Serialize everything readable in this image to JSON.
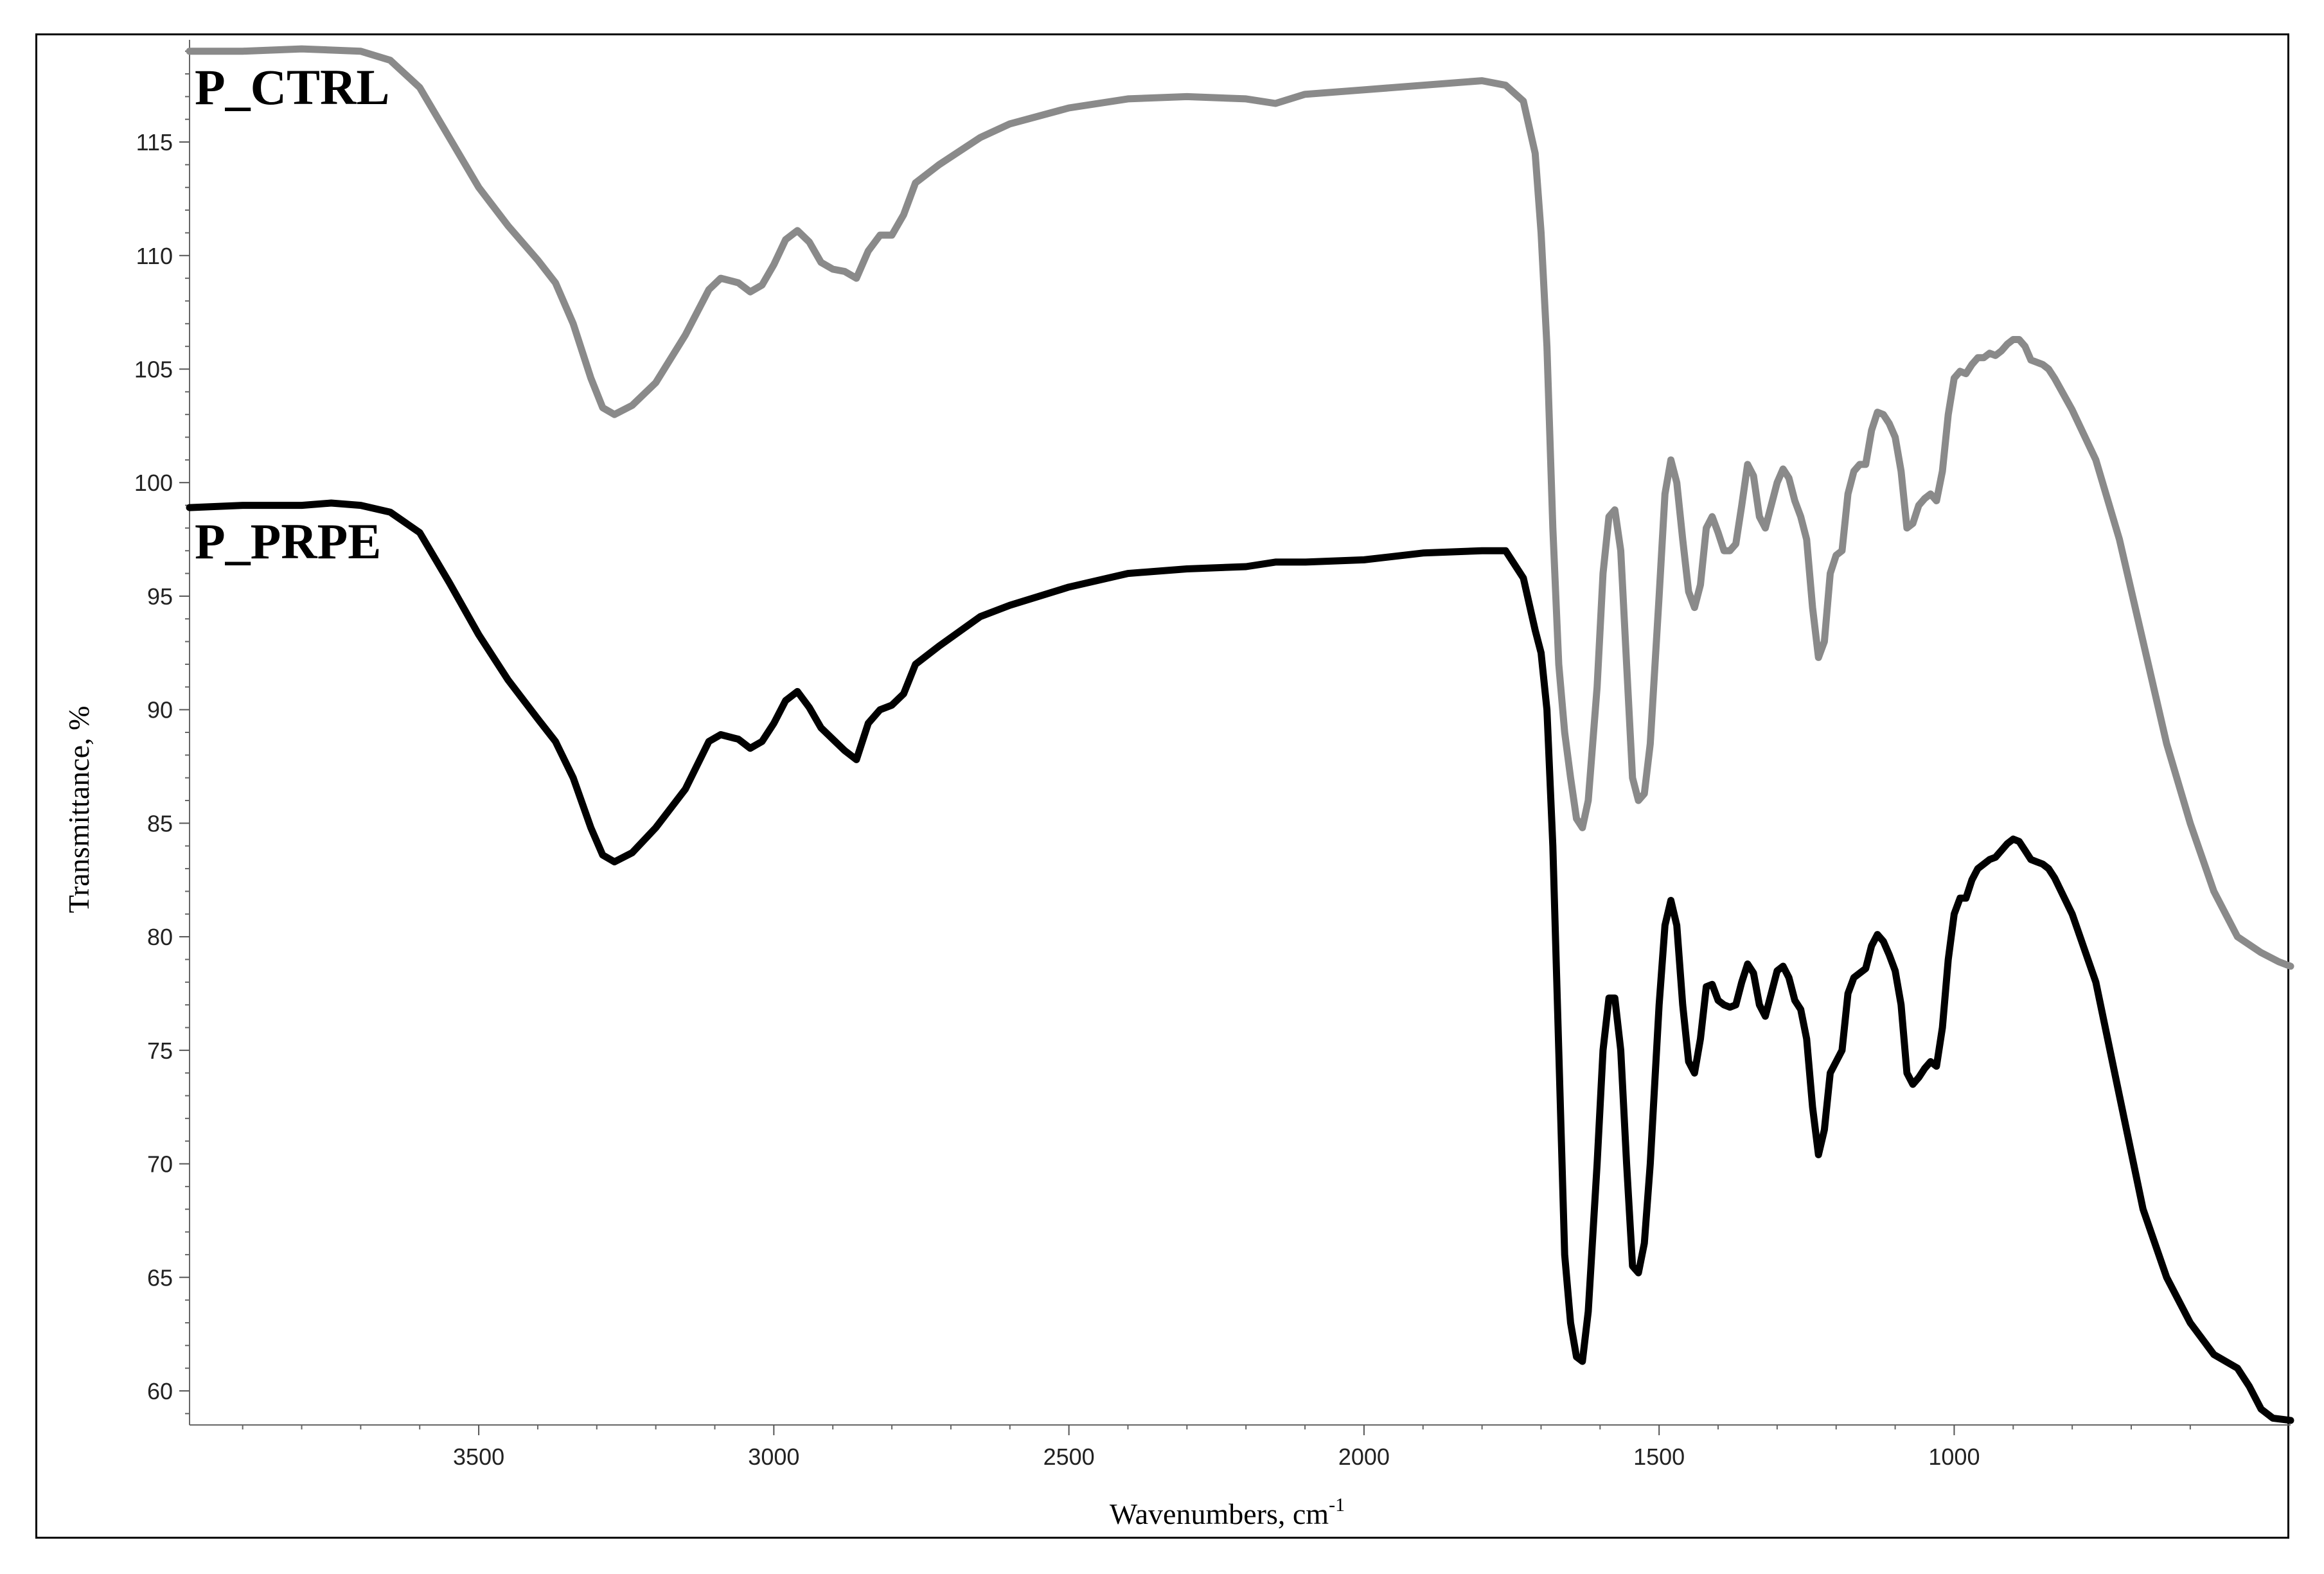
{
  "chart_data": {
    "type": "line",
    "title": "",
    "xlabel": "Wavenumbers, cm",
    "xlabel_superscript": "-1",
    "ylabel": "Transmittance, %",
    "xlim": [
      3990,
      430
    ],
    "ylim": [
      58.5,
      119.5
    ],
    "x_reversed": true,
    "grid": false,
    "x_ticks": [
      3500,
      3000,
      2500,
      2000,
      1500,
      1000
    ],
    "y_ticks": [
      60,
      65,
      70,
      75,
      80,
      85,
      90,
      95,
      100,
      105,
      110,
      115
    ],
    "series": [
      {
        "name": "P_CTRL",
        "color": "#8a8a8a",
        "points": [
          [
            3990,
            119.0
          ],
          [
            3900,
            119.0
          ],
          [
            3800,
            119.1
          ],
          [
            3700,
            119.0
          ],
          [
            3650,
            118.6
          ],
          [
            3600,
            117.4
          ],
          [
            3550,
            115.2
          ],
          [
            3500,
            113.0
          ],
          [
            3450,
            111.3
          ],
          [
            3400,
            109.8
          ],
          [
            3370,
            108.8
          ],
          [
            3340,
            107.0
          ],
          [
            3310,
            104.6
          ],
          [
            3290,
            103.3
          ],
          [
            3270,
            103.0
          ],
          [
            3240,
            103.4
          ],
          [
            3200,
            104.4
          ],
          [
            3150,
            106.5
          ],
          [
            3110,
            108.5
          ],
          [
            3090,
            109.0
          ],
          [
            3060,
            108.8
          ],
          [
            3040,
            108.4
          ],
          [
            3020,
            108.7
          ],
          [
            3000,
            109.6
          ],
          [
            2980,
            110.7
          ],
          [
            2960,
            111.1
          ],
          [
            2940,
            110.6
          ],
          [
            2920,
            109.7
          ],
          [
            2900,
            109.4
          ],
          [
            2880,
            109.3
          ],
          [
            2860,
            109.0
          ],
          [
            2840,
            110.2
          ],
          [
            2820,
            110.9
          ],
          [
            2800,
            110.9
          ],
          [
            2780,
            111.8
          ],
          [
            2760,
            113.2
          ],
          [
            2720,
            114.0
          ],
          [
            2650,
            115.2
          ],
          [
            2600,
            115.8
          ],
          [
            2500,
            116.5
          ],
          [
            2400,
            116.9
          ],
          [
            2300,
            117.0
          ],
          [
            2200,
            116.9
          ],
          [
            2150,
            116.7
          ],
          [
            2100,
            117.1
          ],
          [
            2000,
            117.3
          ],
          [
            1900,
            117.5
          ],
          [
            1800,
            117.7
          ],
          [
            1760,
            117.5
          ],
          [
            1730,
            116.8
          ],
          [
            1710,
            114.5
          ],
          [
            1700,
            111.0
          ],
          [
            1690,
            106.0
          ],
          [
            1680,
            98.0
          ],
          [
            1670,
            92.0
          ],
          [
            1660,
            89.0
          ],
          [
            1650,
            87.0
          ],
          [
            1640,
            85.2
          ],
          [
            1630,
            84.8
          ],
          [
            1620,
            86.0
          ],
          [
            1605,
            91.0
          ],
          [
            1595,
            96.0
          ],
          [
            1585,
            98.5
          ],
          [
            1575,
            98.8
          ],
          [
            1565,
            97.0
          ],
          [
            1555,
            92.0
          ],
          [
            1545,
            87.0
          ],
          [
            1535,
            86.0
          ],
          [
            1525,
            86.3
          ],
          [
            1515,
            88.5
          ],
          [
            1500,
            95.0
          ],
          [
            1490,
            99.5
          ],
          [
            1480,
            101.0
          ],
          [
            1470,
            100.0
          ],
          [
            1460,
            97.5
          ],
          [
            1450,
            95.2
          ],
          [
            1440,
            94.5
          ],
          [
            1430,
            95.5
          ],
          [
            1420,
            98.0
          ],
          [
            1410,
            98.5
          ],
          [
            1400,
            97.8
          ],
          [
            1390,
            97.0
          ],
          [
            1380,
            97.0
          ],
          [
            1370,
            97.3
          ],
          [
            1360,
            99.0
          ],
          [
            1350,
            100.8
          ],
          [
            1340,
            100.3
          ],
          [
            1330,
            98.5
          ],
          [
            1320,
            98.0
          ],
          [
            1310,
            99.0
          ],
          [
            1300,
            100.0
          ],
          [
            1290,
            100.6
          ],
          [
            1280,
            100.2
          ],
          [
            1270,
            99.2
          ],
          [
            1260,
            98.5
          ],
          [
            1250,
            97.5
          ],
          [
            1240,
            94.5
          ],
          [
            1230,
            92.3
          ],
          [
            1220,
            93.0
          ],
          [
            1210,
            96.0
          ],
          [
            1200,
            96.8
          ],
          [
            1190,
            97.0
          ],
          [
            1180,
            99.5
          ],
          [
            1170,
            100.5
          ],
          [
            1160,
            100.8
          ],
          [
            1150,
            100.8
          ],
          [
            1140,
            102.3
          ],
          [
            1130,
            103.1
          ],
          [
            1120,
            103.0
          ],
          [
            1110,
            102.6
          ],
          [
            1100,
            102.0
          ],
          [
            1090,
            100.5
          ],
          [
            1080,
            98.0
          ],
          [
            1070,
            98.2
          ],
          [
            1060,
            99.0
          ],
          [
            1050,
            99.3
          ],
          [
            1040,
            99.5
          ],
          [
            1030,
            99.2
          ],
          [
            1020,
            100.5
          ],
          [
            1010,
            103.0
          ],
          [
            1000,
            104.6
          ],
          [
            990,
            104.9
          ],
          [
            980,
            104.8
          ],
          [
            970,
            105.2
          ],
          [
            960,
            105.5
          ],
          [
            950,
            105.5
          ],
          [
            940,
            105.7
          ],
          [
            930,
            105.6
          ],
          [
            920,
            105.8
          ],
          [
            910,
            106.1
          ],
          [
            900,
            106.3
          ],
          [
            890,
            106.3
          ],
          [
            880,
            106.0
          ],
          [
            870,
            105.4
          ],
          [
            860,
            105.3
          ],
          [
            850,
            105.2
          ],
          [
            840,
            105.0
          ],
          [
            830,
            104.6
          ],
          [
            800,
            103.2
          ],
          [
            760,
            101.0
          ],
          [
            720,
            97.5
          ],
          [
            680,
            93.0
          ],
          [
            640,
            88.5
          ],
          [
            600,
            85.0
          ],
          [
            560,
            82.0
          ],
          [
            520,
            80.0
          ],
          [
            480,
            79.3
          ],
          [
            450,
            78.9
          ],
          [
            430,
            78.7
          ]
        ]
      },
      {
        "name": "P_PRPE",
        "color": "#000000",
        "points": [
          [
            3990,
            98.9
          ],
          [
            3900,
            99.0
          ],
          [
            3850,
            99.0
          ],
          [
            3800,
            99.0
          ],
          [
            3750,
            99.1
          ],
          [
            3700,
            99.0
          ],
          [
            3650,
            98.7
          ],
          [
            3600,
            97.8
          ],
          [
            3550,
            95.6
          ],
          [
            3500,
            93.3
          ],
          [
            3450,
            91.3
          ],
          [
            3400,
            89.6
          ],
          [
            3370,
            88.6
          ],
          [
            3340,
            87.0
          ],
          [
            3310,
            84.8
          ],
          [
            3290,
            83.6
          ],
          [
            3270,
            83.3
          ],
          [
            3240,
            83.7
          ],
          [
            3200,
            84.8
          ],
          [
            3150,
            86.5
          ],
          [
            3110,
            88.6
          ],
          [
            3090,
            88.9
          ],
          [
            3060,
            88.7
          ],
          [
            3040,
            88.3
          ],
          [
            3020,
            88.6
          ],
          [
            3000,
            89.4
          ],
          [
            2980,
            90.4
          ],
          [
            2960,
            90.8
          ],
          [
            2940,
            90.1
          ],
          [
            2920,
            89.2
          ],
          [
            2900,
            88.7
          ],
          [
            2880,
            88.2
          ],
          [
            2860,
            87.8
          ],
          [
            2840,
            89.4
          ],
          [
            2820,
            90.0
          ],
          [
            2800,
            90.2
          ],
          [
            2780,
            90.7
          ],
          [
            2760,
            92.0
          ],
          [
            2720,
            92.8
          ],
          [
            2650,
            94.1
          ],
          [
            2600,
            94.6
          ],
          [
            2500,
            95.4
          ],
          [
            2400,
            96.0
          ],
          [
            2300,
            96.2
          ],
          [
            2200,
            96.3
          ],
          [
            2150,
            96.5
          ],
          [
            2100,
            96.5
          ],
          [
            2000,
            96.6
          ],
          [
            1900,
            96.9
          ],
          [
            1800,
            97.0
          ],
          [
            1760,
            97.0
          ],
          [
            1730,
            95.8
          ],
          [
            1710,
            93.5
          ],
          [
            1700,
            92.5
          ],
          [
            1690,
            90.0
          ],
          [
            1680,
            84.0
          ],
          [
            1670,
            75.0
          ],
          [
            1660,
            66.0
          ],
          [
            1650,
            63.0
          ],
          [
            1640,
            61.5
          ],
          [
            1630,
            61.3
          ],
          [
            1620,
            63.5
          ],
          [
            1605,
            70.0
          ],
          [
            1595,
            75.0
          ],
          [
            1585,
            77.3
          ],
          [
            1575,
            77.3
          ],
          [
            1565,
            75.0
          ],
          [
            1555,
            70.0
          ],
          [
            1545,
            65.5
          ],
          [
            1535,
            65.2
          ],
          [
            1525,
            66.5
          ],
          [
            1515,
            70.0
          ],
          [
            1500,
            77.0
          ],
          [
            1490,
            80.5
          ],
          [
            1480,
            81.6
          ],
          [
            1470,
            80.5
          ],
          [
            1460,
            77.0
          ],
          [
            1450,
            74.5
          ],
          [
            1440,
            74.0
          ],
          [
            1430,
            75.5
          ],
          [
            1420,
            77.8
          ],
          [
            1410,
            77.9
          ],
          [
            1400,
            77.2
          ],
          [
            1390,
            77.0
          ],
          [
            1380,
            76.9
          ],
          [
            1370,
            77.0
          ],
          [
            1360,
            78.0
          ],
          [
            1350,
            78.8
          ],
          [
            1340,
            78.4
          ],
          [
            1330,
            77.0
          ],
          [
            1320,
            76.5
          ],
          [
            1310,
            77.5
          ],
          [
            1300,
            78.5
          ],
          [
            1290,
            78.7
          ],
          [
            1280,
            78.2
          ],
          [
            1270,
            77.2
          ],
          [
            1260,
            76.8
          ],
          [
            1250,
            75.5
          ],
          [
            1240,
            72.5
          ],
          [
            1230,
            70.4
          ],
          [
            1220,
            71.5
          ],
          [
            1210,
            74.0
          ],
          [
            1200,
            74.5
          ],
          [
            1190,
            75.0
          ],
          [
            1180,
            77.5
          ],
          [
            1170,
            78.2
          ],
          [
            1160,
            78.4
          ],
          [
            1150,
            78.6
          ],
          [
            1140,
            79.6
          ],
          [
            1130,
            80.1
          ],
          [
            1120,
            79.8
          ],
          [
            1110,
            79.2
          ],
          [
            1100,
            78.5
          ],
          [
            1090,
            77.0
          ],
          [
            1080,
            74.0
          ],
          [
            1070,
            73.5
          ],
          [
            1060,
            73.8
          ],
          [
            1050,
            74.2
          ],
          [
            1040,
            74.5
          ],
          [
            1030,
            74.3
          ],
          [
            1020,
            76.0
          ],
          [
            1010,
            79.0
          ],
          [
            1000,
            81.0
          ],
          [
            990,
            81.7
          ],
          [
            980,
            81.7
          ],
          [
            970,
            82.5
          ],
          [
            960,
            83.0
          ],
          [
            950,
            83.2
          ],
          [
            940,
            83.4
          ],
          [
            930,
            83.5
          ],
          [
            920,
            83.8
          ],
          [
            910,
            84.1
          ],
          [
            900,
            84.3
          ],
          [
            890,
            84.2
          ],
          [
            880,
            83.8
          ],
          [
            870,
            83.4
          ],
          [
            860,
            83.3
          ],
          [
            850,
            83.2
          ],
          [
            840,
            83.0
          ],
          [
            830,
            82.6
          ],
          [
            800,
            81.0
          ],
          [
            760,
            78.0
          ],
          [
            720,
            73.0
          ],
          [
            680,
            68.0
          ],
          [
            640,
            65.0
          ],
          [
            600,
            63.0
          ],
          [
            560,
            61.6
          ],
          [
            520,
            61.0
          ],
          [
            500,
            60.2
          ],
          [
            480,
            59.2
          ],
          [
            460,
            58.8
          ],
          [
            430,
            58.7
          ]
        ]
      }
    ],
    "annotations": [
      {
        "text": "P_CTRL",
        "x": 3990,
        "y": 117.4
      },
      {
        "text": "P_PRPE",
        "x": 3990,
        "y": 97.4
      }
    ]
  }
}
